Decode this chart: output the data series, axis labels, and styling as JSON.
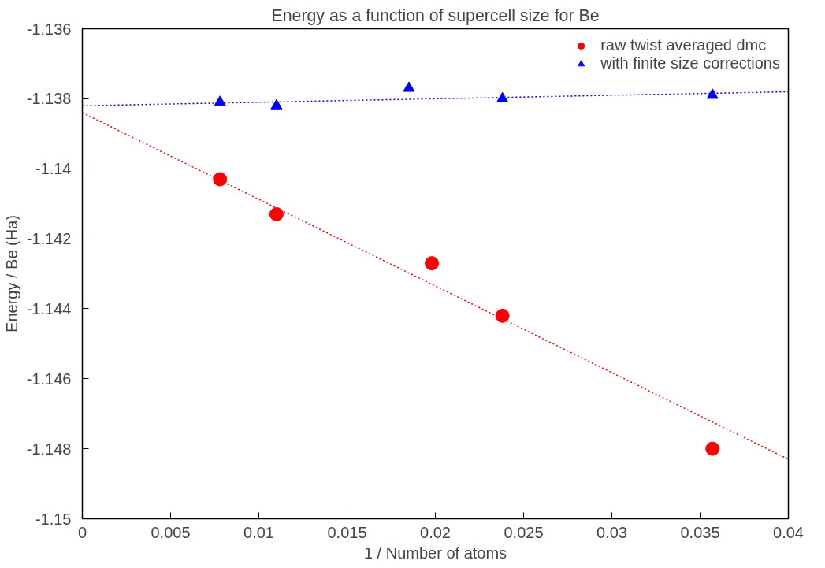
{
  "chart_data": {
    "type": "scatter",
    "title": "Energy as a function of supercell size for Be",
    "xlabel": "1 / Number of atoms",
    "ylabel": "Energy / Be (Ha)",
    "xlim": [
      0,
      0.04
    ],
    "xticks": [
      0,
      0.005,
      0.01,
      0.015,
      0.02,
      0.025,
      0.03,
      0.035,
      0.04
    ],
    "ylim": [
      -1.15,
      -1.136
    ],
    "yticks": [
      -1.15,
      -1.148,
      -1.146,
      -1.144,
      -1.142,
      -1.14,
      -1.138,
      -1.136
    ],
    "grid": false,
    "legend": "top right",
    "series": [
      {
        "name": "raw twist averaged dmc",
        "color": "#ff0000",
        "marker": "circle",
        "x": [
          0.0078,
          0.011,
          0.0198,
          0.0238,
          0.0357
        ],
        "values": [
          -1.1403,
          -1.1413,
          -1.1427,
          -1.1442,
          -1.148
        ]
      },
      {
        "name": "with finite size corrections",
        "color": "#0000ff",
        "marker": "triangle",
        "x": [
          0.0078,
          0.011,
          0.0185,
          0.0238,
          0.0357
        ],
        "values": [
          -1.1381,
          -1.1382,
          -1.1377,
          -1.138,
          -1.1379
        ]
      },
      {
        "type": "line",
        "color": "#ff0000",
        "line_style": "dotted",
        "marker": "none",
        "x": [
          0,
          0.04
        ],
        "values": [
          -1.1384,
          -1.1483
        ]
      },
      {
        "type": "line",
        "color": "#0000ff",
        "line_style": "dotted",
        "marker": "none",
        "x": [
          0,
          0.04
        ],
        "values": [
          -1.1382,
          -1.1378
        ]
      }
    ]
  }
}
